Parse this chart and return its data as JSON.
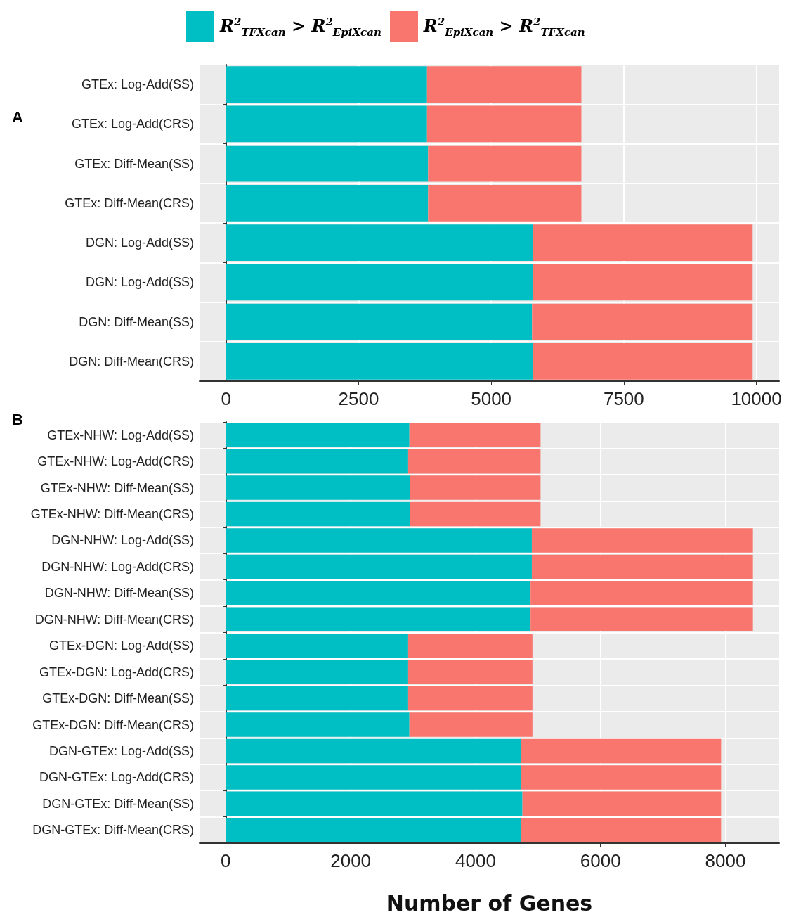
{
  "chart_data": [
    {
      "type": "bar",
      "title": "A",
      "orientation": "horizontal",
      "stacked": true,
      "grid": true,
      "legend": "top",
      "categories": [
        "GTEx: Log-Add(SS)",
        "GTEx: Log-Add(CRS)",
        "GTEx: Diff-Mean(SS)",
        "GTEx: Diff-Mean(CRS)",
        "DGN: Log-Add(SS)",
        "DGN: Log-Add(SS)",
        "DGN: Diff-Mean(SS)",
        "DGN: Diff-Mean(CRS)"
      ],
      "series": [
        {
          "name": "R$^{2}$$_{TFXcan}$ > R$^{2}$$_{EpiXcan}$",
          "color": "#00bfc4",
          "values": [
            3790,
            3790,
            3810,
            3810,
            5790,
            5790,
            5770,
            5790
          ]
        },
        {
          "name": "R$^{2}$$_{EpiXcan}$ > R$^{2}$$_{TFXcan}$",
          "color": "#f8766d",
          "values": [
            2910,
            2910,
            2890,
            2890,
            4140,
            4140,
            4160,
            4140
          ]
        }
      ],
      "xlim": [
        -500,
        10430
      ],
      "xticks": [
        0,
        2500,
        5000,
        7500,
        10000
      ]
    },
    {
      "type": "bar",
      "title": "B",
      "orientation": "horizontal",
      "stacked": true,
      "grid": true,
      "xlabel": "Number of Genes",
      "categories": [
        "GTEx-NHW: Log-Add(SS)",
        "GTEx-NHW: Log-Add(CRS)",
        "GTEx-NHW: Diff-Mean(SS)",
        "GTEx-NHW: Diff-Mean(CRS)",
        "DGN-NHW: Log-Add(SS)",
        "DGN-NHW: Log-Add(CRS)",
        "DGN-NHW: Diff-Mean(SS)",
        "DGN-NHW: Diff-Mean(CRS)",
        "GTEx-DGN: Log-Add(SS)",
        "GTEx-DGN: Log-Add(CRS)",
        "GTEx-DGN: Diff-Mean(SS)",
        "GTEx-DGN: Diff-Mean(CRS)",
        "DGN-GTEx: Log-Add(SS)",
        "DGN-GTEx: Log-Add(CRS)",
        "DGN-GTEx: Diff-Mean(SS)",
        "DGN-GTEx: Diff-Mean(CRS)"
      ],
      "series": [
        {
          "color": "#00bfc4",
          "values": [
            2940,
            2920,
            2950,
            2950,
            4900,
            4900,
            4880,
            4880,
            2920,
            2920,
            2920,
            2940,
            4730,
            4730,
            4750,
            4730
          ]
        },
        {
          "color": "#f8766d",
          "values": [
            2100,
            2120,
            2090,
            2090,
            3540,
            3540,
            3560,
            3560,
            1990,
            1990,
            1990,
            1970,
            3200,
            3200,
            3180,
            3200
          ]
        }
      ],
      "xlim": [
        -420,
        8860
      ],
      "xticks": [
        0,
        2000,
        4000,
        6000,
        8000
      ]
    }
  ]
}
